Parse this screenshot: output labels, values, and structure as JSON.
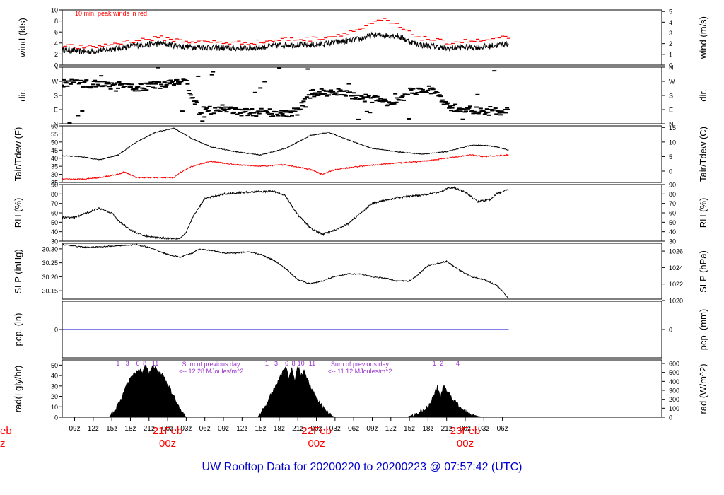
{
  "title": "UW Rooftop Data for 20200220  to  20200223 @ 07:57:42  (UTC)",
  "colors": {
    "axis": "#000000",
    "series": "#000000",
    "red": "#ff0000",
    "blue": "#0000cc",
    "purple": "#9933cc",
    "date": "#ff0000"
  },
  "x_axis": {
    "unit": "hours since 2020-02-20 07:00 UTC",
    "range": [
      0,
      96.7
    ],
    "ticks": [
      {
        "h": 2,
        "label": "09z"
      },
      {
        "h": 5,
        "label": "12z"
      },
      {
        "h": 8,
        "label": "15z"
      },
      {
        "h": 11,
        "label": "18z"
      },
      {
        "h": 14,
        "label": "21z"
      },
      {
        "h": 17,
        "label": "00z"
      },
      {
        "h": 20,
        "label": "03z"
      },
      {
        "h": 23,
        "label": "06z"
      },
      {
        "h": 26,
        "label": "09z"
      },
      {
        "h": 29,
        "label": "12z"
      },
      {
        "h": 32,
        "label": "15z"
      },
      {
        "h": 35,
        "label": "18z"
      },
      {
        "h": 38,
        "label": "21z"
      },
      {
        "h": 41,
        "label": "00z"
      },
      {
        "h": 44,
        "label": "03z"
      },
      {
        "h": 47,
        "label": "06z"
      },
      {
        "h": 50,
        "label": "09z"
      },
      {
        "h": 53,
        "label": "12z"
      },
      {
        "h": 56,
        "label": "15z"
      },
      {
        "h": 59,
        "label": "18z"
      },
      {
        "h": 62,
        "label": "21z"
      },
      {
        "h": 65,
        "label": "00z"
      },
      {
        "h": 68,
        "label": "03z"
      },
      {
        "h": 71,
        "label": "06z"
      }
    ],
    "date_labels": [
      {
        "h": 17,
        "label": "21Feb",
        "sub": "00z"
      },
      {
        "h": 41,
        "label": "22Feb",
        "sub": "00z"
      },
      {
        "h": 65,
        "label": "23Feb",
        "sub": "00z"
      }
    ],
    "edge_label": {
      "label": "eb",
      "sub": "z"
    }
  },
  "chart_data": [
    {
      "id": "wind",
      "type": "line",
      "ylabel": "wind (kts)",
      "ylabel_right": "wind (m/s)",
      "ylim": [
        0,
        10
      ],
      "left_ticks": [
        0,
        2,
        4,
        6,
        8,
        10
      ],
      "right_ticks": [
        {
          "v": 0,
          "label": "0"
        },
        {
          "v": 1.94,
          "label": "1"
        },
        {
          "v": 3.89,
          "label": "2"
        },
        {
          "v": 5.83,
          "label": "3"
        },
        {
          "v": 7.78,
          "label": "4"
        },
        {
          "v": 9.72,
          "label": "5"
        }
      ],
      "annotation": "10 min. peak winds in red",
      "series": [
        {
          "name": "wind speed",
          "color": "black",
          "noise": 0.55,
          "x": [
            0,
            4,
            8,
            12,
            16,
            20,
            24,
            28,
            32,
            36,
            40,
            44,
            48,
            50,
            52,
            54,
            56,
            58,
            60,
            62,
            64,
            68,
            72
          ],
          "y": [
            2.8,
            2.4,
            2.9,
            3.6,
            3.9,
            3.3,
            3.2,
            3.0,
            3.2,
            3.7,
            3.6,
            4.1,
            4.7,
            5.4,
            5.4,
            5.3,
            4.3,
            3.6,
            3.4,
            3.0,
            3.2,
            3.3,
            3.9
          ]
        },
        {
          "name": "10 min peak",
          "color": "red",
          "style": "dashes",
          "x": [
            0,
            4,
            8,
            12,
            16,
            20,
            24,
            28,
            32,
            36,
            40,
            44,
            48,
            50,
            52,
            54,
            56,
            58,
            60,
            62,
            64,
            68,
            72
          ],
          "y": [
            3.6,
            3.1,
            3.8,
            4.5,
            4.9,
            4.3,
            4.2,
            4.0,
            4.2,
            4.7,
            4.7,
            5.3,
            6.5,
            7.5,
            8.2,
            7.2,
            5.8,
            4.9,
            4.6,
            4.0,
            4.3,
            4.4,
            5.0
          ]
        }
      ]
    },
    {
      "id": "dir",
      "type": "scatter",
      "ylabel": "dir.",
      "ylabel_right": "dir.",
      "ylim": [
        0,
        360
      ],
      "left_ticks": [
        {
          "v": 0,
          "label": "N"
        },
        {
          "v": 90,
          "label": "E"
        },
        {
          "v": 180,
          "label": "S"
        },
        {
          "v": 270,
          "label": "W"
        },
        {
          "v": 360,
          "label": "N"
        }
      ],
      "right_ticks": [
        {
          "v": 0,
          "label": "N"
        },
        {
          "v": 90,
          "label": "E"
        },
        {
          "v": 180,
          "label": "S"
        },
        {
          "v": 270,
          "label": "W"
        },
        {
          "v": 360,
          "label": "N"
        }
      ],
      "series": [
        {
          "name": "wind direction",
          "color": "black",
          "scatter_spread": 0.9,
          "x": [
            0,
            4,
            8,
            12,
            16,
            18,
            20,
            22,
            24,
            26,
            28,
            30,
            32,
            36,
            38,
            40,
            42,
            44,
            48,
            52,
            54,
            56,
            58,
            60,
            62,
            64,
            66,
            68,
            72
          ],
          "y": [
            260,
            255,
            245,
            230,
            250,
            270,
            265,
            90,
            85,
            100,
            80,
            70,
            75,
            65,
            80,
            190,
            200,
            205,
            170,
            145,
            120,
            200,
            215,
            215,
            110,
            95,
            90,
            70,
            80
          ]
        }
      ]
    },
    {
      "id": "temp",
      "type": "line",
      "ylabel": "Tair/Tdew (F)",
      "ylabel_right": "Tair/Tdew (C)",
      "ylim": [
        25,
        60
      ],
      "left_ticks": [
        25,
        30,
        35,
        40,
        45,
        50,
        55,
        60
      ],
      "right_ticks": [
        {
          "v": 32,
          "label": "0"
        },
        {
          "v": 41,
          "label": "5"
        },
        {
          "v": 50,
          "label": "10"
        },
        {
          "v": 59,
          "label": "15"
        }
      ],
      "series": [
        {
          "name": "Tair",
          "color": "black",
          "noise": 0.25,
          "x": [
            0,
            3,
            6,
            9,
            12,
            15,
            18,
            21,
            24,
            28,
            32,
            36,
            40,
            43,
            46,
            50,
            54,
            58,
            62,
            66,
            68,
            70,
            72
          ],
          "y": [
            41.5,
            41,
            39,
            42,
            50,
            56,
            58.5,
            52,
            47,
            44,
            42,
            46,
            54,
            56,
            51.5,
            46,
            44,
            42.5,
            44,
            48,
            48,
            47,
            45
          ]
        },
        {
          "name": "Tdew",
          "color": "red",
          "noise": 0.35,
          "x": [
            0,
            3,
            6,
            9,
            10,
            12,
            15,
            18,
            19,
            21,
            24,
            28,
            32,
            36,
            40,
            42,
            44,
            48,
            54,
            58,
            62,
            66,
            68,
            72
          ],
          "y": [
            27,
            27,
            28,
            30,
            31.5,
            28,
            28,
            28,
            31,
            35,
            38,
            36,
            35,
            36,
            33,
            30,
            33,
            35,
            37,
            38,
            40,
            42,
            41,
            42
          ]
        }
      ]
    },
    {
      "id": "rh",
      "type": "line",
      "ylabel": "RH (%)",
      "ylabel_right": "RH (%)",
      "ylim": [
        30,
        90
      ],
      "left_ticks": [
        30,
        40,
        50,
        60,
        70,
        80,
        90
      ],
      "right_ticks": [
        {
          "v": 30,
          "label": "30"
        },
        {
          "v": 40,
          "label": "40"
        },
        {
          "v": 50,
          "label": "50"
        },
        {
          "v": 60,
          "label": "60"
        },
        {
          "v": 70,
          "label": "70"
        },
        {
          "v": 80,
          "label": "80"
        },
        {
          "v": 90,
          "label": "90"
        }
      ],
      "series": [
        {
          "name": "RH",
          "color": "black",
          "noise": 1.0,
          "x": [
            0,
            2,
            4,
            6,
            8,
            9,
            11,
            13,
            15,
            17,
            19,
            20,
            21,
            23,
            26,
            30,
            34,
            36,
            38,
            40,
            42,
            44,
            46,
            50,
            54,
            58,
            61,
            62,
            63,
            65,
            67,
            69,
            70,
            72
          ],
          "y": [
            55,
            55,
            60,
            65,
            60,
            52,
            42,
            36,
            34,
            33,
            33,
            39,
            55,
            75,
            80,
            82,
            83,
            78,
            58,
            44,
            37,
            42,
            48,
            70,
            76,
            79,
            82,
            86,
            87,
            82,
            72,
            74,
            80,
            85
          ]
        }
      ]
    },
    {
      "id": "slp",
      "type": "line",
      "ylabel": "SLP (inHg)",
      "ylabel_right": "SLP (hPa)",
      "ylim": [
        30.12,
        30.32
      ],
      "left_ticks": [
        30.15,
        30.2,
        30.25,
        30.3
      ],
      "right_ticks": [
        {
          "v": 30.115,
          "label": "1020"
        },
        {
          "v": 30.174,
          "label": "1022"
        },
        {
          "v": 30.233,
          "label": "1024"
        },
        {
          "v": 30.292,
          "label": "1026"
        }
      ],
      "series": [
        {
          "name": "SLP",
          "color": "black",
          "noise": 0.002,
          "x": [
            0,
            2,
            4,
            8,
            12,
            14,
            17,
            19,
            21,
            22,
            24,
            26,
            28,
            30,
            32,
            34,
            36,
            38,
            40,
            42,
            43,
            44,
            46,
            48,
            50,
            52,
            54,
            56,
            57,
            59,
            62,
            64,
            66,
            68,
            70,
            71,
            72
          ],
          "y": [
            30.315,
            30.31,
            30.305,
            30.31,
            30.315,
            30.305,
            30.28,
            30.27,
            30.285,
            30.298,
            30.295,
            30.285,
            30.285,
            30.29,
            30.28,
            30.26,
            30.23,
            30.19,
            30.175,
            30.185,
            30.195,
            30.2,
            30.21,
            30.21,
            30.2,
            30.195,
            30.185,
            30.185,
            30.2,
            30.24,
            30.255,
            30.225,
            30.2,
            30.19,
            30.17,
            30.15,
            30.12
          ]
        }
      ]
    },
    {
      "id": "pcp",
      "type": "line",
      "ylabel": "pcp. (in)",
      "ylabel_right": "pcp. (mm)",
      "ylim": [
        -1,
        1
      ],
      "left_ticks": [
        0
      ],
      "right_ticks": [
        {
          "v": 0,
          "label": "0"
        }
      ],
      "series": [
        {
          "name": "precip",
          "color": "blue",
          "x": [
            0,
            72
          ],
          "y": [
            0,
            0
          ]
        }
      ]
    },
    {
      "id": "rad",
      "type": "area",
      "ylabel": "rad(Lgly/hr)",
      "ylabel_right": "rad (W/m^2)",
      "ylim": [
        0,
        55
      ],
      "left_ticks": [
        0,
        10,
        20,
        30,
        40,
        50
      ],
      "right_ticks": [
        {
          "v": 0,
          "label": "0"
        },
        {
          "v": 8.6,
          "label": "100"
        },
        {
          "v": 17.2,
          "label": "200"
        },
        {
          "v": 25.8,
          "label": "300"
        },
        {
          "v": 34.4,
          "label": "400"
        },
        {
          "v": 43.0,
          "label": "500"
        },
        {
          "v": 51.6,
          "label": "600"
        }
      ],
      "series": [
        {
          "name": "solar radiation",
          "color": "black",
          "days": [
            {
              "x": [
                7.5,
                8.5,
                9.5,
                10.5,
                11.5,
                12.5,
                13,
                13.5,
                14,
                14.5,
                15,
                15.5,
                16,
                16.5,
                17,
                18,
                19,
                20
              ],
              "y": [
                0,
                6,
                18,
                32,
                41,
                46,
                44,
                49,
                43,
                50,
                47,
                45,
                42,
                38,
                32,
                20,
                8,
                0
              ]
            },
            {
              "x": [
                31.5,
                32.5,
                33.5,
                34.5,
                35.5,
                36,
                36.5,
                37,
                37.5,
                38,
                38.5,
                39,
                39.5,
                40,
                40.5,
                41,
                42,
                43,
                44
              ],
              "y": [
                0,
                8,
                20,
                32,
                42,
                50,
                38,
                48,
                35,
                50,
                40,
                45,
                38,
                30,
                25,
                18,
                10,
                3,
                0
              ]
            },
            {
              "x": [
                55.5,
                57,
                58,
                59,
                60,
                60.5,
                61,
                61.5,
                62,
                62.5,
                63,
                63.5,
                64,
                65,
                66,
                67,
                68
              ],
              "y": [
                0,
                3,
                6,
                10,
                22,
                30,
                18,
                32,
                25,
                22,
                15,
                16,
                10,
                6,
                3,
                1,
                0
              ]
            }
          ]
        }
      ],
      "hour_labels": [
        {
          "h": 9,
          "label": "1"
        },
        {
          "h": 10.5,
          "label": "3"
        },
        {
          "h": 12.2,
          "label": "6"
        },
        {
          "h": 13.3,
          "label": "8"
        },
        {
          "h": 15,
          "label": "11"
        },
        {
          "h": 33,
          "label": "1"
        },
        {
          "h": 34.5,
          "label": "3"
        },
        {
          "h": 36.2,
          "label": "6"
        },
        {
          "h": 37.3,
          "label": "8"
        },
        {
          "h": 38.5,
          "label": "10"
        },
        {
          "h": 40.3,
          "label": "11"
        },
        {
          "h": 60,
          "label": "1"
        },
        {
          "h": 61.2,
          "label": "2"
        },
        {
          "h": 63.8,
          "label": "4"
        }
      ],
      "annotations": [
        {
          "h": 24,
          "line1": "Sum of previous day",
          "line2": "<-- 12.28 MJoules/m^2"
        },
        {
          "h": 48,
          "line1": "Sum of previous day",
          "line2": "<-- 11.12 MJoules/m^2"
        }
      ]
    }
  ]
}
